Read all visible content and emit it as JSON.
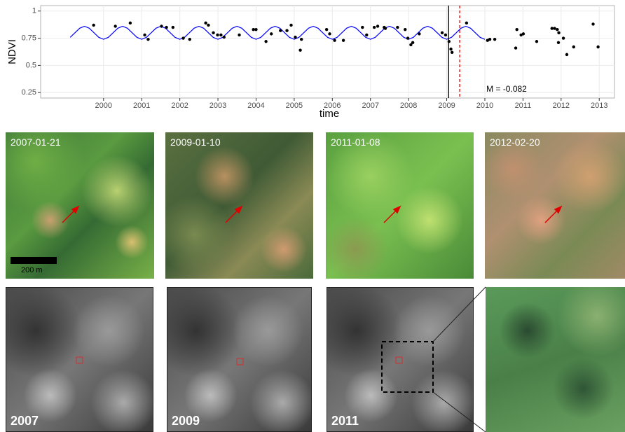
{
  "chart_data": {
    "type": "scatter",
    "x_label": "time",
    "y_label": "NDVI",
    "xlim": [
      1998.35,
      2013.4
    ],
    "ylim": [
      0.2,
      1.05
    ],
    "xticks": [
      2000,
      2001,
      2002,
      2003,
      2004,
      2005,
      2006,
      2007,
      2008,
      2009,
      2010,
      2011,
      2012,
      2013
    ],
    "yticks": [
      0.25,
      0.5,
      0.75,
      1
    ],
    "grid": true,
    "points": {
      "color": "#000000",
      "x": [
        1999.74,
        2000.31,
        2000.7,
        2001.08,
        2001.17,
        2001.52,
        2001.65,
        2001.82,
        2002.09,
        2002.26,
        2002.68,
        2002.75,
        2002.88,
        2002.99,
        2003.08,
        2003.16,
        2003.56,
        2003.93,
        2004.0,
        2004.26,
        2004.4,
        2004.64,
        2004.81,
        2004.92,
        2005.03,
        2005.16,
        2005.19,
        2005.85,
        2005.93,
        2006.06,
        2006.29,
        2006.79,
        2006.9,
        2007.1,
        2007.19,
        2007.36,
        2007.39,
        2007.71,
        2007.91,
        2007.98,
        2008.06,
        2008.11,
        2008.28,
        2008.88,
        2008.97,
        2009.06,
        2009.11,
        2009.14,
        2009.52,
        2010.07,
        2010.13,
        2010.26,
        2010.81,
        2010.84,
        2010.95,
        2011.01,
        2011.36,
        2011.76,
        2011.83,
        2011.9,
        2011.93,
        2011.94,
        2012.06,
        2012.15,
        2012.33,
        2012.84,
        2012.97
      ],
      "values": [
        0.87,
        0.86,
        0.89,
        0.78,
        0.74,
        0.86,
        0.85,
        0.85,
        0.75,
        0.74,
        0.89,
        0.87,
        0.8,
        0.78,
        0.78,
        0.76,
        0.78,
        0.83,
        0.83,
        0.72,
        0.79,
        0.82,
        0.82,
        0.87,
        0.76,
        0.64,
        0.74,
        0.83,
        0.79,
        0.73,
        0.73,
        0.85,
        0.78,
        0.85,
        0.86,
        0.85,
        0.84,
        0.85,
        0.83,
        0.75,
        0.69,
        0.71,
        0.79,
        0.8,
        0.78,
        0.72,
        0.65,
        0.62,
        0.89,
        0.73,
        0.74,
        0.74,
        0.66,
        0.83,
        0.78,
        0.79,
        0.72,
        0.84,
        0.84,
        0.83,
        0.71,
        0.8,
        0.75,
        0.6,
        0.67,
        0.88,
        0.67
      ]
    },
    "fit": {
      "color": "#0000ff",
      "x": [
        1999.125,
        1999.25,
        1999.375,
        1999.5,
        1999.625,
        1999.75,
        1999.875,
        2000,
        2000.125,
        2000.25,
        2000.375,
        2000.5,
        2000.625,
        2000.75,
        2000.875,
        2001,
        2001.125,
        2001.25,
        2001.375,
        2001.5,
        2001.625,
        2001.75,
        2001.875,
        2002,
        2002.125,
        2002.25,
        2002.375,
        2002.5,
        2002.625,
        2002.75,
        2002.875,
        2003,
        2003.125,
        2003.25,
        2003.375,
        2003.5,
        2003.625,
        2003.75,
        2003.875,
        2004,
        2004.125,
        2004.25,
        2004.375,
        2004.5,
        2004.625,
        2004.75,
        2004.875,
        2005,
        2005.125,
        2005.25,
        2005.375,
        2005.5,
        2005.625,
        2005.75,
        2005.875,
        2006,
        2006.125,
        2006.25,
        2006.375,
        2006.5,
        2006.625,
        2006.75,
        2006.875,
        2007,
        2007.125,
        2007.25,
        2007.375,
        2007.5,
        2007.625,
        2007.75,
        2007.875,
        2008,
        2008.125,
        2008.25,
        2008.375,
        2008.5,
        2008.625,
        2008.75,
        2008.875,
        2009,
        2009.125,
        2009.25,
        2009.375,
        2009.5,
        2009.625,
        2009.75,
        2009.875,
        2010
      ],
      "values": [
        0.758,
        0.8,
        0.842,
        0.86,
        0.842,
        0.8,
        0.758,
        0.74,
        0.758,
        0.8,
        0.842,
        0.86,
        0.842,
        0.8,
        0.758,
        0.74,
        0.758,
        0.8,
        0.842,
        0.86,
        0.842,
        0.8,
        0.758,
        0.74,
        0.758,
        0.8,
        0.842,
        0.86,
        0.842,
        0.8,
        0.758,
        0.74,
        0.758,
        0.8,
        0.842,
        0.86,
        0.842,
        0.8,
        0.758,
        0.74,
        0.758,
        0.8,
        0.842,
        0.86,
        0.842,
        0.8,
        0.758,
        0.74,
        0.758,
        0.8,
        0.842,
        0.86,
        0.842,
        0.8,
        0.758,
        0.74,
        0.758,
        0.8,
        0.842,
        0.86,
        0.842,
        0.8,
        0.758,
        0.74,
        0.758,
        0.8,
        0.842,
        0.86,
        0.842,
        0.8,
        0.758,
        0.74,
        0.758,
        0.8,
        0.842,
        0.86,
        0.842,
        0.8,
        0.758,
        0.74,
        0.758,
        0.8,
        0.842,
        0.86,
        0.842,
        0.8,
        0.758,
        0.74
      ]
    },
    "vlines": [
      {
        "value": 2009.05,
        "color": "#000000",
        "dashed": false
      },
      {
        "value": 2009.34,
        "color": "#ee0000",
        "dashed": true
      }
    ],
    "annotation": "M = -0.082"
  },
  "images": {
    "dates": [
      "2007-01-21",
      "2009-01-10",
      "2011-01-08",
      "2012-02-20"
    ],
    "years": [
      "2007",
      "2009",
      "2011"
    ],
    "scale_bar": "200 m"
  }
}
